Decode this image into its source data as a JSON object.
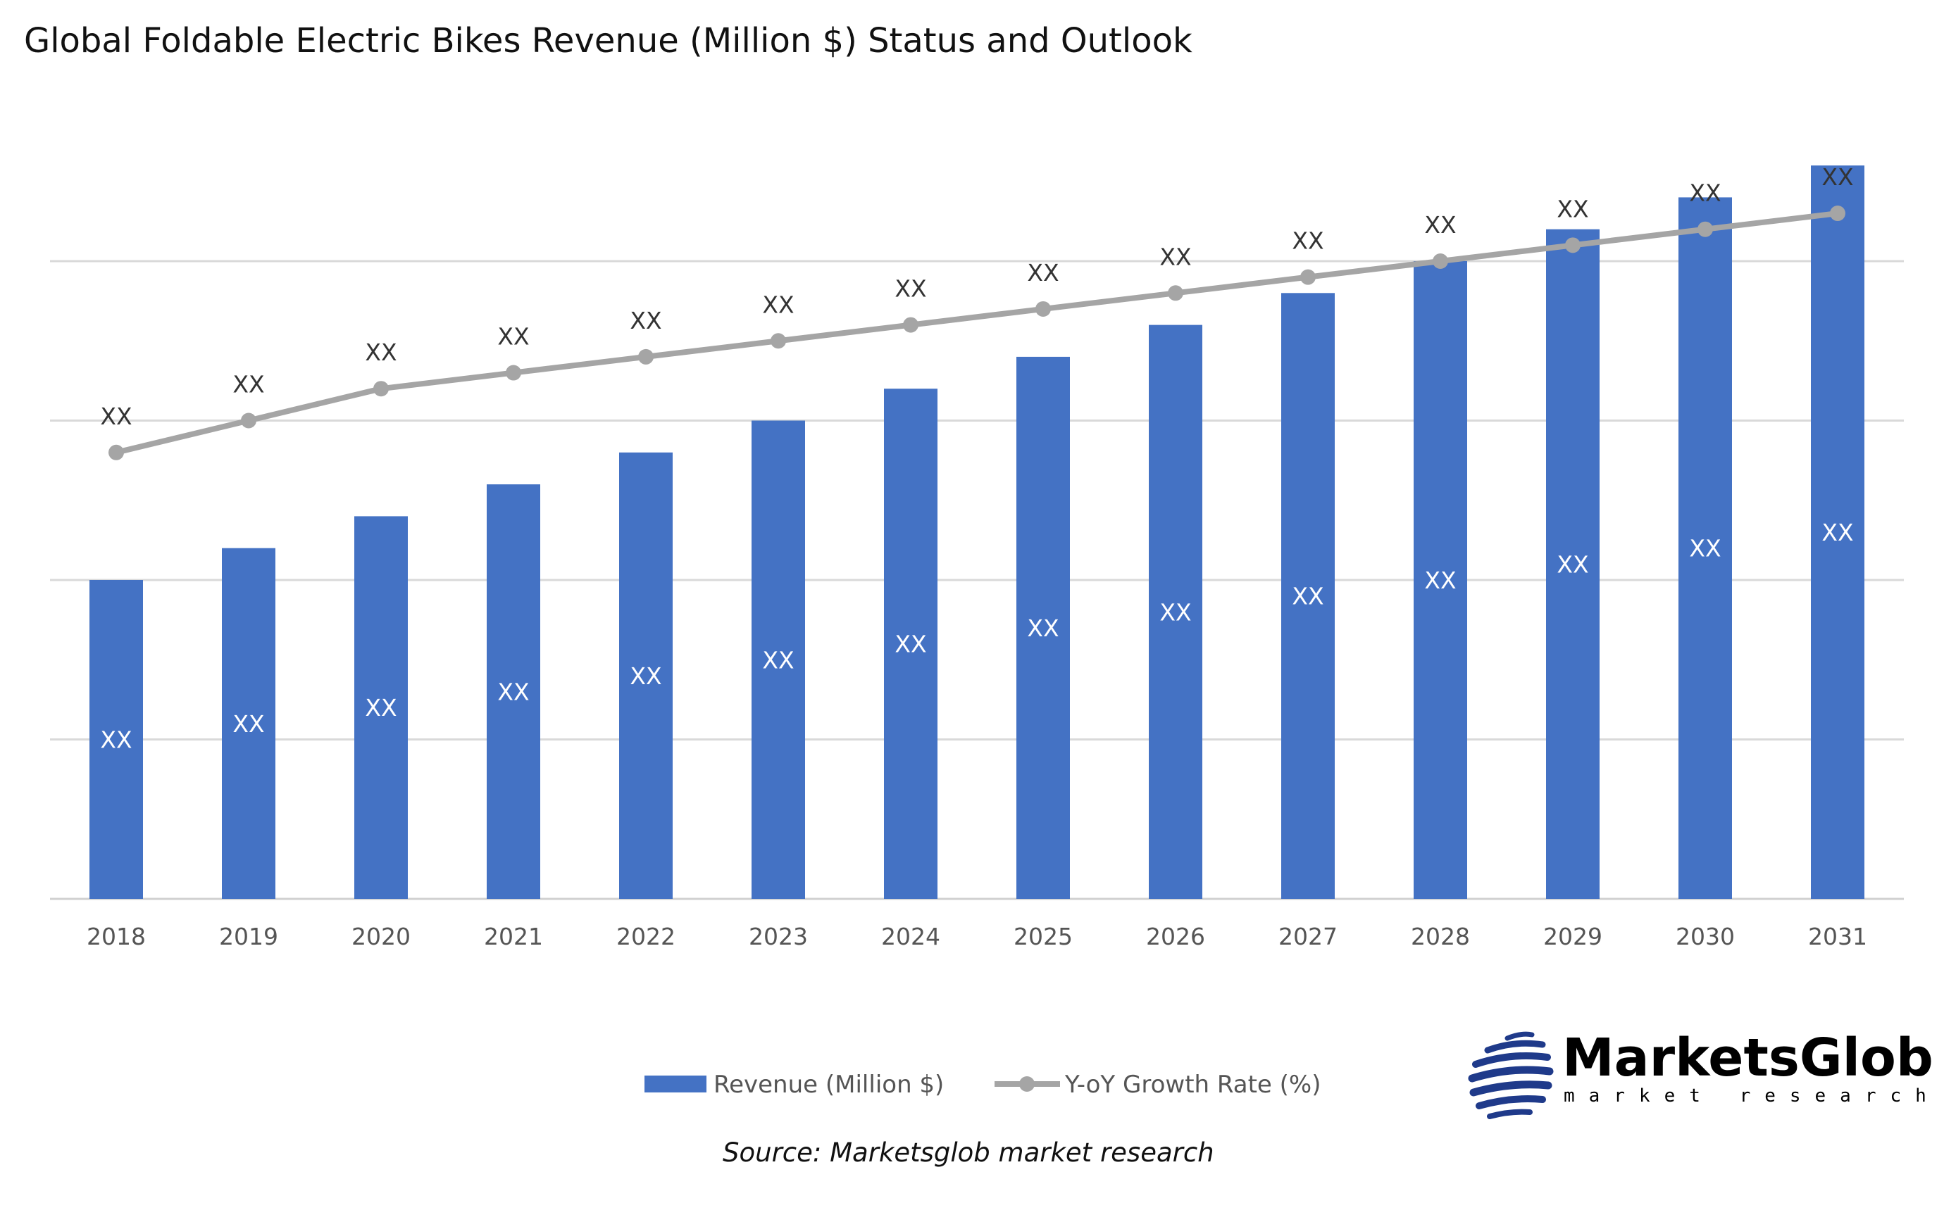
{
  "chart_data": {
    "type": "bar+line",
    "title": "Global Foldable Electric Bikes Revenue (Million $) Status and Outlook",
    "categories": [
      "2018",
      "2019",
      "2020",
      "2021",
      "2022",
      "2023",
      "2024",
      "2025",
      "2026",
      "2027",
      "2028",
      "2029",
      "2030",
      "2031"
    ],
    "series": [
      {
        "name": "Revenue (Million $)",
        "type": "bar",
        "color": "#4472C4",
        "values": [
          2.0,
          2.2,
          2.4,
          2.6,
          2.8,
          3.0,
          3.2,
          3.4,
          3.6,
          3.8,
          4.0,
          4.2,
          4.4,
          4.6
        ],
        "labels": [
          "XX",
          "XX",
          "XX",
          "XX",
          "XX",
          "XX",
          "XX",
          "XX",
          "XX",
          "XX",
          "XX",
          "XX",
          "XX",
          "XX"
        ]
      },
      {
        "name": "Y-oY Growth Rate (%)",
        "type": "line",
        "color": "#A5A5A5",
        "values": [
          2.8,
          3.0,
          3.2,
          3.3,
          3.4,
          3.5,
          3.6,
          3.7,
          3.8,
          3.9,
          4.0,
          4.1,
          4.2,
          4.3
        ],
        "labels": [
          "XX",
          "XX",
          "XX",
          "XX",
          "XX",
          "XX",
          "XX",
          "XX",
          "XX",
          "XX",
          "XX",
          "XX",
          "XX",
          "XX"
        ]
      }
    ],
    "ylim": [
      0,
      4.6
    ],
    "gridlines": [
      0,
      1,
      2,
      3,
      4
    ],
    "grid": true,
    "y_tick_labels_shown": false,
    "legend": "bottom"
  },
  "source": "Source: Marketsglob market research",
  "logo": {
    "name": "MarketsGlob",
    "tagline": "market research",
    "color": "#1F3A8A"
  }
}
